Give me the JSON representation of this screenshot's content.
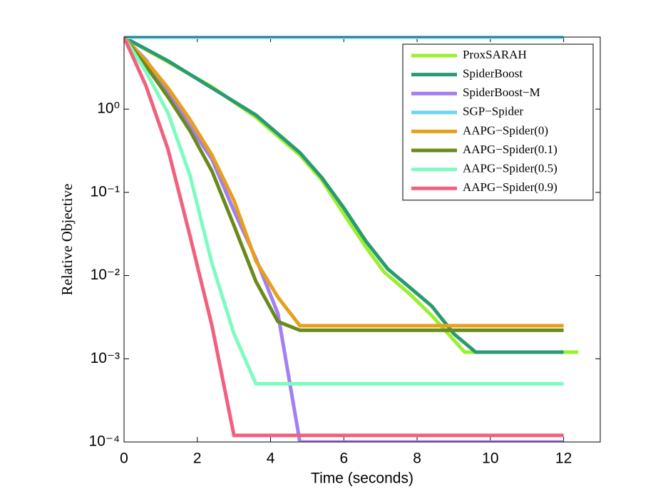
{
  "chart_data": {
    "type": "line",
    "x_label": "Time (seconds)",
    "y_label": "Relative Objective",
    "log_y": true,
    "legend": "upper right",
    "xlim": [
      0,
      13
    ],
    "xticks": [
      0,
      2,
      4,
      6,
      8,
      10,
      12
    ],
    "ylim": [
      0.0001,
      7.35
    ],
    "yticks": [
      {
        "value": 0.0001,
        "label": "10⁻⁴"
      },
      {
        "value": 0.001,
        "label": "10⁻³"
      },
      {
        "value": 0.01,
        "label": "10⁻²"
      },
      {
        "value": 0.1,
        "label": "10⁻¹"
      },
      {
        "value": 1,
        "label": "10⁰"
      }
    ],
    "series": [
      {
        "name": "ProxSARAH",
        "color": "#99f02e",
        "x": [
          0,
          1.2,
          2.4,
          3.6,
          4.8,
          5.4,
          6,
          6.6,
          7.1,
          7.8,
          8.4,
          9.3,
          12.4
        ],
        "values": [
          7.3,
          3.7,
          1.85,
          0.8,
          0.28,
          0.14,
          0.055,
          0.022,
          0.011,
          0.006,
          0.0033,
          0.0012,
          0.0012
        ]
      },
      {
        "name": "SpiderBoost",
        "color": "#2a9a72",
        "x": [
          0,
          1.2,
          2.4,
          3.6,
          4.8,
          5.4,
          6,
          6.6,
          7.2,
          7.8,
          8.4,
          9,
          9.6,
          12
        ],
        "values": [
          7.3,
          3.8,
          1.8,
          0.85,
          0.3,
          0.15,
          0.065,
          0.026,
          0.012,
          0.0072,
          0.0043,
          0.002,
          0.0012,
          0.0012
        ]
      },
      {
        "name": "SpiderBoost−M",
        "color": "#a27ff2",
        "x": [
          0,
          0.6,
          1.2,
          1.8,
          2.4,
          3,
          3.6,
          4.2,
          4.8,
          12
        ],
        "values": [
          7.3,
          3.9,
          1.6,
          0.62,
          0.25,
          0.06,
          0.016,
          0.0035,
          0.0001,
          0.0001
        ]
      },
      {
        "name": "SGP−Spider",
        "color": "#6fd6f2",
        "x": [
          0,
          12
        ],
        "values": [
          7.3,
          7.3
        ]
      },
      {
        "name": "AAPG−Spider(0)",
        "color": "#e6a01c",
        "x": [
          0,
          0.6,
          1.2,
          1.8,
          2.4,
          3,
          3.6,
          4.2,
          4.8,
          12
        ],
        "values": [
          7.3,
          3.8,
          1.8,
          0.75,
          0.28,
          0.08,
          0.015,
          0.0055,
          0.0025,
          0.0025
        ]
      },
      {
        "name": "AAPG−Spider(0.1)",
        "color": "#6b8a1c",
        "x": [
          0,
          0.6,
          1.2,
          1.8,
          2.4,
          3,
          3.6,
          4.2,
          4.8,
          12
        ],
        "values": [
          7.3,
          3.3,
          1.4,
          0.55,
          0.18,
          0.04,
          0.0085,
          0.0028,
          0.0022,
          0.0022
        ]
      },
      {
        "name": "AAPG−Spider(0.5)",
        "color": "#7dfcc0",
        "x": [
          0,
          0.6,
          1.2,
          1.8,
          2.4,
          3,
          3.6,
          12
        ],
        "values": [
          7.3,
          2.8,
          0.9,
          0.16,
          0.014,
          0.002,
          0.0005,
          0.0005
        ]
      },
      {
        "name": "AAPG−Spider(0.9)",
        "color": "#f2607c",
        "x": [
          0,
          0.6,
          1.2,
          1.8,
          2.4,
          3,
          12
        ],
        "values": [
          7.3,
          1.9,
          0.33,
          0.03,
          0.0025,
          0.00012,
          0.00012
        ]
      }
    ]
  }
}
